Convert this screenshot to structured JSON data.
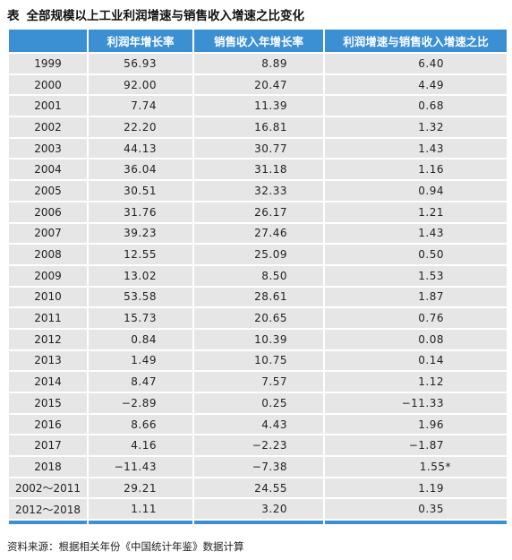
{
  "title": {
    "prefix": "表",
    "text": "全部规模以上工业利润增速与销售收入增速之比变化"
  },
  "table": {
    "headers": [
      "",
      "利润年增长率",
      "销售收入年增长率",
      "利润增速与销售收入增速之比"
    ],
    "rows": [
      [
        "1999",
        "56.93",
        "8.89",
        "6.40"
      ],
      [
        "2000",
        "92.00",
        "20.47",
        "4.49"
      ],
      [
        "2001",
        "7.74",
        "11.39",
        "0.68"
      ],
      [
        "2002",
        "22.20",
        "16.81",
        "1.32"
      ],
      [
        "2003",
        "44.13",
        "30.77",
        "1.43"
      ],
      [
        "2004",
        "36.04",
        "31.18",
        "1.16"
      ],
      [
        "2005",
        "30.51",
        "32.33",
        "0.94"
      ],
      [
        "2006",
        "31.76",
        "26.17",
        "1.21"
      ],
      [
        "2007",
        "39.23",
        "27.46",
        "1.43"
      ],
      [
        "2008",
        "12.55",
        "25.09",
        "0.50"
      ],
      [
        "2009",
        "13.02",
        "8.50",
        "1.53"
      ],
      [
        "2010",
        "53.58",
        "28.61",
        "1.87"
      ],
      [
        "2011",
        "15.73",
        "20.65",
        "0.76"
      ],
      [
        "2012",
        "0.84",
        "10.39",
        "0.08"
      ],
      [
        "2013",
        "1.49",
        "10.75",
        "0.14"
      ],
      [
        "2014",
        "8.47",
        "7.57",
        "1.12"
      ],
      [
        "2015",
        "−2.89",
        "0.25",
        "−11.33"
      ],
      [
        "2016",
        "8.66",
        "4.43",
        "1.96"
      ],
      [
        "2017",
        "4.16",
        "−2.23",
        "−1.87"
      ],
      [
        "2018",
        "−11.43",
        "−7.38",
        "1.55*"
      ],
      [
        "2002～2011",
        "29.21",
        "24.55",
        "1.19"
      ],
      [
        "2012～2018",
        "1.11",
        "3.20",
        "0.35"
      ]
    ]
  },
  "source": "资料来源：根据相关年份《中国统计年鉴》数据计算",
  "colors": {
    "header": "#3b8fd3",
    "cell": "#e6e6e6"
  }
}
